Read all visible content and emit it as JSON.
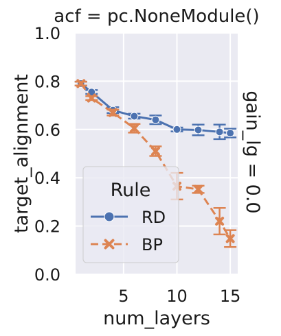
{
  "chart_data": {
    "type": "line",
    "title": "acf = pc.NoneModule()",
    "row_label": "gain_lg = 0.0",
    "xlabel": "num_layers",
    "ylabel": "target_alignment",
    "xlim": [
      0.5,
      15.7
    ],
    "ylim": [
      0.0,
      1.0
    ],
    "xticks": [
      5,
      10,
      15
    ],
    "yticks": [
      0.0,
      0.2,
      0.4,
      0.6,
      0.8,
      1.0
    ],
    "grid": true,
    "legend": {
      "title": "Rule",
      "placement": "lower-left"
    },
    "series": [
      {
        "name": "RD",
        "color": "#4c72b0",
        "marker": "circle",
        "linestyle": "solid",
        "x": [
          1,
          2,
          4,
          6,
          8,
          10,
          12,
          14,
          15
        ],
        "y": [
          0.79,
          0.755,
          0.68,
          0.655,
          0.64,
          0.6,
          0.598,
          0.59,
          0.585
        ],
        "err": [
          0.008,
          0.008,
          0.012,
          0.01,
          0.018,
          0.008,
          0.022,
          0.03,
          0.018
        ]
      },
      {
        "name": "BP",
        "color": "#dd8452",
        "marker": "x",
        "linestyle": "dashed",
        "x": [
          1,
          2,
          4,
          6,
          8,
          10,
          12,
          14,
          15
        ],
        "y": [
          0.79,
          0.73,
          0.67,
          0.605,
          0.51,
          0.365,
          0.352,
          0.22,
          0.148
        ],
        "err": [
          0.008,
          0.008,
          0.012,
          0.018,
          0.02,
          0.055,
          0.015,
          0.055,
          0.035
        ]
      }
    ]
  }
}
